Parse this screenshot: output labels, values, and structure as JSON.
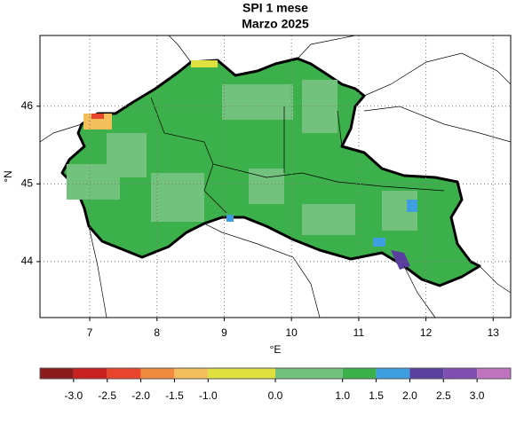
{
  "chart_data": {
    "type": "map",
    "title": "SPI 1 mese",
    "subtitle": "Marzo 2025",
    "x_label": "°E",
    "y_label": "°N",
    "xlim": [
      6.26,
      13.26
    ],
    "ylim": [
      43.28,
      46.91
    ],
    "xticks": [
      7,
      8,
      9,
      10,
      11,
      12,
      13
    ],
    "yticks": [
      44,
      45,
      46
    ],
    "grid": true,
    "colorbar": {
      "clim": [
        -3.5,
        3.5
      ],
      "ticks": [
        {
          "value": -3,
          "label": "-3.0"
        },
        {
          "value": -2.5,
          "label": "-2.5"
        },
        {
          "value": -2,
          "label": "-2.0"
        },
        {
          "value": -1.5,
          "label": "-1.5"
        },
        {
          "value": -1,
          "label": "-1.0"
        },
        {
          "value": 0,
          "label": "0.0"
        },
        {
          "value": 1,
          "label": "1.0"
        },
        1.5,
        {
          "value": 2,
          "label": "2.0"
        },
        2.5,
        {
          "value": 3,
          "label": "3.0"
        }
      ],
      "colors": [
        "#8b1a1a",
        "#c8201e",
        "#e8452c",
        "#f08a3c",
        "#f2bf5a",
        "#dfe03e",
        "#72c27e",
        "#3bb04b",
        "#3e9fe0",
        "#5a3ea0",
        "#7e4fb0",
        "#c074c0"
      ]
    }
  }
}
